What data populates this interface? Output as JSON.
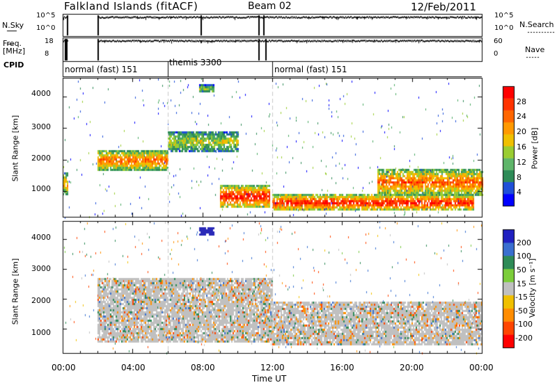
{
  "header": {
    "station": "Falkland Islands (fitACF)",
    "beam": "Beam 02",
    "date": "12/Feb/2011"
  },
  "nsky_panel": {
    "left_label": "N.Sky",
    "right_label": "N.Search",
    "left_ticks": [
      "10^5",
      "10^0"
    ],
    "right_ticks": [
      "10^5",
      "10^0"
    ]
  },
  "freq_panel": {
    "left_label_1": "Freq.",
    "left_label_2": "[MHz]",
    "right_label": "Nave",
    "left_ticks": [
      "18",
      "8"
    ],
    "right_ticks": [
      "60",
      "0"
    ]
  },
  "cpid": {
    "label": "CPID",
    "modes": [
      {
        "start_hour": 0,
        "end_hour": 6,
        "text": "normal (fast) 151"
      },
      {
        "start_hour": 6,
        "end_hour": 12,
        "text": "themis 3300"
      },
      {
        "start_hour": 12,
        "end_hour": 24,
        "text": "normal (fast) 151"
      }
    ]
  },
  "power_panel": {
    "ylabel": "Slant Range [km]",
    "yticks": [
      "4000",
      "3000",
      "2000",
      "1000"
    ],
    "colorbar_label": "Power [dB]",
    "colorbar_ticks": [
      "28",
      "24",
      "20",
      "16",
      "12",
      "8",
      "4"
    ]
  },
  "velocity_panel": {
    "ylabel": "Slant Range [km]",
    "yticks": [
      "4000",
      "3000",
      "2000",
      "1000"
    ],
    "colorbar_label": "Velocity [m s⁻¹]",
    "colorbar_ticks": [
      "200",
      "100",
      "50",
      "15",
      "-15",
      "-50",
      "-100",
      "-200"
    ]
  },
  "x_axis": {
    "ticks": [
      "00:00",
      "04:00",
      "08:00",
      "12:00",
      "16:00",
      "20:00",
      "00:00"
    ],
    "label": "Time UT"
  },
  "colors": {
    "power_scale": [
      "#0000ff",
      "#1f4fd8",
      "#2e8b57",
      "#5fb56a",
      "#9acd32",
      "#f0c000",
      "#ff9900",
      "#ff6600",
      "#ff3300",
      "#ff0000"
    ],
    "velocity_scale": [
      "#2020c0",
      "#3a6fd0",
      "#2e8b57",
      "#7ccd3a",
      "#c0c0c0",
      "#f0c000",
      "#ff8c00",
      "#ff4500",
      "#ff0000"
    ],
    "ground_scatter": "#c0c0c0"
  },
  "chart_data": [
    {
      "type": "heatmap",
      "title": "Power [dB]",
      "xlabel": "Time UT",
      "ylabel": "Slant Range [km]",
      "xlim": [
        0,
        24
      ],
      "ylim": [
        180,
        4600
      ],
      "zlim": [
        0,
        30
      ],
      "scatter_regions": [
        {
          "t_start": 0.0,
          "t_end": 0.3,
          "r_start": 900,
          "r_end": 1600,
          "power": 18
        },
        {
          "t_start": 2.0,
          "t_end": 6.0,
          "r_start": 1700,
          "r_end": 2300,
          "power": 22
        },
        {
          "t_start": 6.0,
          "t_end": 10.0,
          "r_start": 2300,
          "r_end": 2900,
          "power": 14
        },
        {
          "t_start": 9.0,
          "t_end": 11.8,
          "r_start": 500,
          "r_end": 1200,
          "power": 26
        },
        {
          "t_start": 12.0,
          "t_end": 23.5,
          "r_start": 400,
          "r_end": 900,
          "power": 26
        },
        {
          "t_start": 18.0,
          "t_end": 24.0,
          "r_start": 900,
          "r_end": 1700,
          "power": 22
        },
        {
          "t_start": 7.8,
          "t_end": 8.6,
          "r_start": 4150,
          "r_end": 4400,
          "power": 12
        }
      ]
    },
    {
      "type": "heatmap",
      "title": "Velocity [m s⁻¹]",
      "xlabel": "Time UT",
      "ylabel": "Slant Range [km]",
      "xlim": [
        0,
        24
      ],
      "ylim": [
        180,
        4600
      ],
      "zlim": [
        -200,
        200
      ],
      "scatter_regions": [
        {
          "t_start": 2.0,
          "t_end": 12.0,
          "r_start": 600,
          "r_end": 2700,
          "velocity": 0
        },
        {
          "t_start": 12.0,
          "t_end": 24.0,
          "r_start": 500,
          "r_end": 1900,
          "velocity": 0
        },
        {
          "t_start": 7.8,
          "t_end": 8.6,
          "r_start": 4150,
          "r_end": 4400,
          "velocity": 200
        }
      ]
    }
  ]
}
